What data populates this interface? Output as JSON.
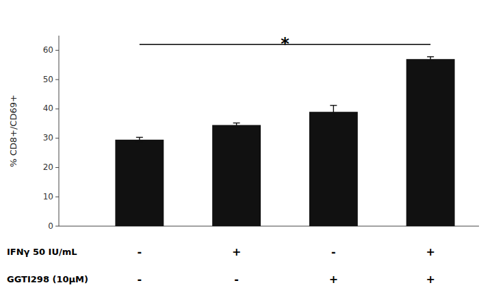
{
  "chart_data": {
    "type": "bar",
    "categories": [
      null,
      null,
      null,
      null
    ],
    "values": [
      29.5,
      34.5,
      39.0,
      57.0
    ],
    "errors": [
      0.8,
      0.7,
      2.2,
      0.8
    ],
    "color": "#111111",
    "ylabel": "% CD8+/CD69+",
    "ylim": [
      0,
      65
    ],
    "yticks": [
      0,
      10,
      20,
      30,
      40,
      50,
      60
    ],
    "grid": false,
    "tick_labels": "y",
    "condition_rows": [
      {
        "label": "IFNγ 50 IU/mL",
        "values": [
          "-",
          "+",
          "-",
          "+"
        ]
      },
      {
        "label": "GGTI298 (10μM)",
        "values": [
          "-",
          "-",
          "+",
          "+"
        ]
      }
    ],
    "significance": {
      "text": "*",
      "from": 0,
      "to": 3,
      "y": 62.0,
      "text_y": 63.5
    }
  }
}
